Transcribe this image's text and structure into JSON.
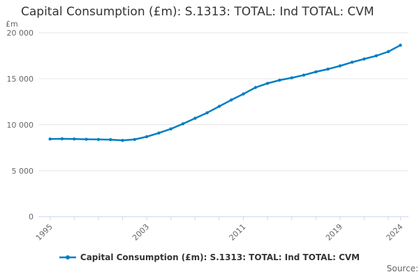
{
  "header": {
    "title": "Capital Consumption (£m): S.1313: TOTAL: Ind TOTAL: CVM",
    "unit_label": "£m"
  },
  "legend": {
    "label": "Capital Consumption (£m): S.1313: TOTAL: Ind TOTAL: CVM"
  },
  "source": {
    "label": "Source:"
  },
  "colors": {
    "series": "#007dc3",
    "grid": "#e6e6e6",
    "axis": "#ccd6eb",
    "text_muted": "#666666",
    "text_dark": "#333333"
  },
  "chart_data": {
    "type": "line",
    "title": "Capital Consumption (£m): S.1313: TOTAL: Ind TOTAL: CVM",
    "xlabel": "",
    "ylabel": "£m",
    "ylim": [
      0,
      20000
    ],
    "grid": true,
    "legend_position": "bottom",
    "marker": "circle",
    "x": [
      1995,
      1996,
      1997,
      1998,
      1999,
      2000,
      2001,
      2002,
      2003,
      2004,
      2005,
      2006,
      2007,
      2008,
      2009,
      2010,
      2011,
      2012,
      2013,
      2014,
      2015,
      2016,
      2017,
      2018,
      2019,
      2020,
      2021,
      2022,
      2023,
      2024
    ],
    "values": [
      8450,
      8470,
      8450,
      8420,
      8400,
      8380,
      8300,
      8400,
      8700,
      9100,
      9550,
      10100,
      10700,
      11300,
      12000,
      12700,
      13350,
      14050,
      14500,
      14850,
      15100,
      15400,
      15750,
      16050,
      16400,
      16800,
      17150,
      17500,
      17950,
      18650
    ],
    "series_name": "Capital Consumption (£m): S.1313: TOTAL: Ind TOTAL: CVM",
    "ytick_values": [
      0,
      5000,
      10000,
      15000,
      20000
    ],
    "ytick_labels": [
      "0",
      "5 000",
      "10 000",
      "15 000",
      "20 000"
    ],
    "xticks": [
      1995,
      1997,
      1999,
      2001,
      2003,
      2005,
      2007,
      2009,
      2011,
      2013,
      2015,
      2017,
      2019,
      2021,
      2023,
      2024
    ],
    "xtick_labels": [
      1995,
      2003,
      2011,
      2019,
      2024
    ]
  }
}
